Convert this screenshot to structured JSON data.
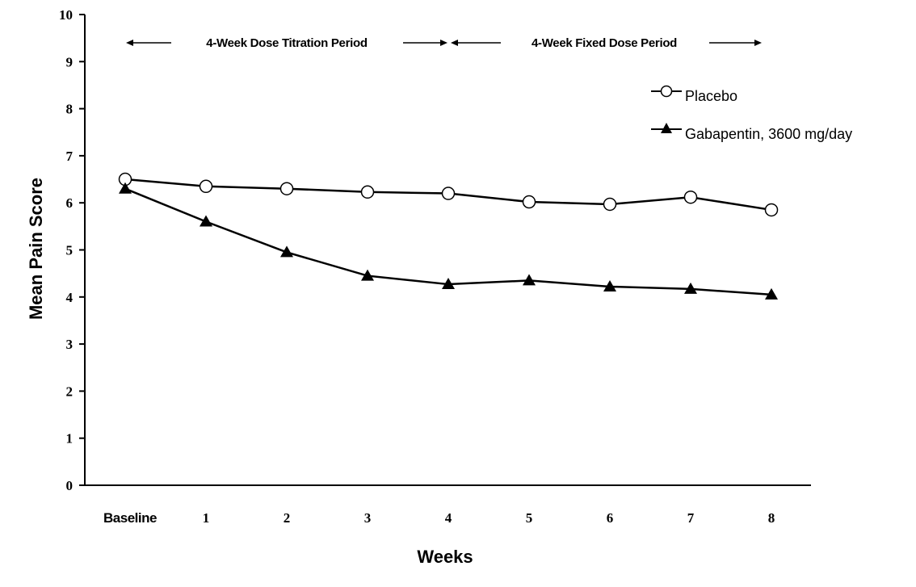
{
  "chart_data": {
    "type": "line",
    "categories": [
      "Baseline",
      "1",
      "2",
      "3",
      "4",
      "5",
      "6",
      "7",
      "8"
    ],
    "series": [
      {
        "name": "Placebo",
        "marker": "open-circle",
        "values": [
          6.5,
          6.35,
          6.3,
          6.23,
          6.2,
          6.02,
          5.97,
          6.12,
          5.85
        ]
      },
      {
        "name": "Gabapentin, 3600 mg/day",
        "marker": "filled-triangle",
        "values": [
          6.3,
          5.6,
          4.95,
          4.45,
          4.27,
          4.35,
          4.22,
          4.17,
          4.05
        ]
      }
    ],
    "xlabel": "Weeks",
    "ylabel": "Mean Pain Score",
    "ylim": [
      0,
      10
    ],
    "yticks": [
      "0",
      "1",
      "2",
      "3",
      "4",
      "5",
      "6",
      "7",
      "8",
      "9",
      "10"
    ],
    "annotations": {
      "titration_period": "4-Week Dose Titration Period",
      "fixed_period": "4-Week Fixed Dose Period"
    },
    "legend_position": "top-right",
    "grid": false
  }
}
